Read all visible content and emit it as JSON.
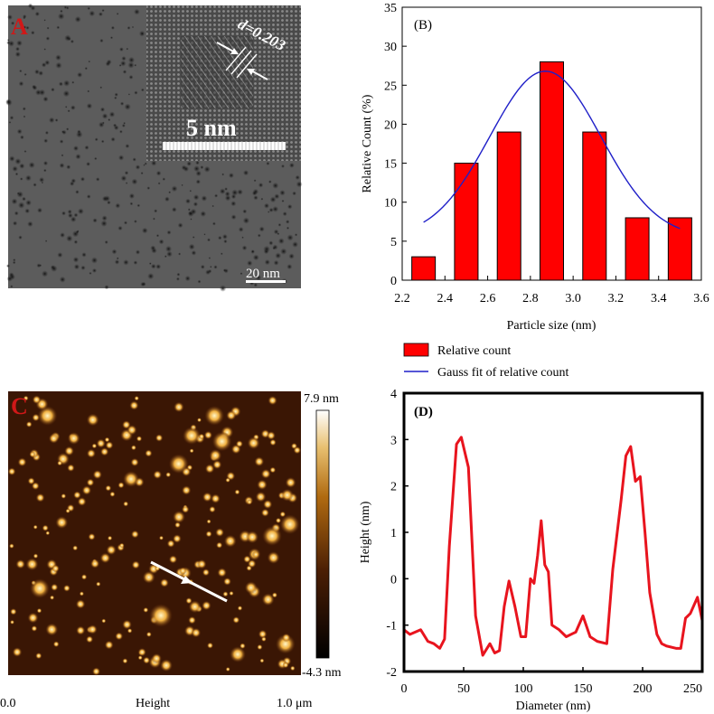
{
  "panelA": {
    "label": "A",
    "inset_d_label": "d=0.203",
    "inset_scale_label": "5 nm",
    "scale_label": "20 nm"
  },
  "panelC": {
    "label": "C",
    "colorbar_max": "7.9 nm",
    "colorbar_min": "-4.3 nm",
    "axis_left": "0.0",
    "axis_center": "Height",
    "axis_right": "1.0 μm"
  },
  "chart_data": [
    {
      "id": "B",
      "type": "bar",
      "title": "(B)",
      "xlabel": "Particle size (nm)",
      "ylabel": "Relative Count (%)",
      "xlim": [
        2.2,
        3.6
      ],
      "ylim": [
        0,
        35
      ],
      "xticks": [
        "2.2",
        "2.4",
        "2.6",
        "2.8",
        "3.0",
        "3.2",
        "3.4",
        "3.6"
      ],
      "yticks": [
        "0",
        "5",
        "10",
        "15",
        "20",
        "25",
        "30",
        "35"
      ],
      "bar_width": 0.11,
      "x": [
        2.3,
        2.5,
        2.7,
        2.9,
        3.1,
        3.3,
        3.5
      ],
      "values": [
        3,
        15,
        19,
        28,
        19,
        8,
        8
      ],
      "bar_color": "#ff0000",
      "gauss_fit": {
        "amplitude": 21.3,
        "mean": 2.87,
        "sigma": 0.26,
        "offset": 5.5,
        "x_range": [
          2.3,
          3.5
        ],
        "color": "#1f1fc8"
      },
      "legend": [
        {
          "label": "Relative count",
          "kind": "bar"
        },
        {
          "label": "Gauss fit of relative count",
          "kind": "line"
        }
      ],
      "legend_placement": "below"
    },
    {
      "id": "D",
      "type": "line",
      "title": "(D)",
      "xlabel": "Diameter (nm)",
      "ylabel": "Height (nm)",
      "xlim": [
        0,
        250
      ],
      "ylim": [
        -2,
        4
      ],
      "xticks": [
        "0",
        "50",
        "100",
        "150",
        "200",
        "250"
      ],
      "yticks": [
        "-2",
        "-1",
        "0",
        "1",
        "2",
        "3",
        "4"
      ],
      "color": "#e8141e",
      "x": [
        0,
        5,
        14,
        20,
        25,
        30,
        34,
        38,
        44,
        48,
        54,
        60,
        66,
        72,
        76,
        80,
        84,
        88,
        93,
        98,
        102,
        106,
        109,
        112,
        115,
        118,
        121,
        124,
        130,
        136,
        144,
        150,
        156,
        162,
        170,
        175,
        182,
        186,
        190,
        194,
        198,
        202,
        206,
        212,
        216,
        220,
        228,
        232,
        236,
        240,
        246,
        250
      ],
      "y": [
        -1.1,
        -1.2,
        -1.1,
        -1.35,
        -1.4,
        -1.5,
        -1.3,
        0.7,
        2.9,
        3.05,
        2.4,
        -0.8,
        -1.65,
        -1.4,
        -1.6,
        -1.55,
        -0.6,
        -0.05,
        -0.6,
        -1.25,
        -1.25,
        0.0,
        -0.1,
        0.5,
        1.25,
        0.3,
        0.15,
        -1.0,
        -1.1,
        -1.25,
        -1.15,
        -0.8,
        -1.25,
        -1.35,
        -1.4,
        0.2,
        1.7,
        2.65,
        2.85,
        2.1,
        2.2,
        1.0,
        -0.3,
        -1.2,
        -1.4,
        -1.45,
        -1.5,
        -1.5,
        -0.85,
        -0.75,
        -0.4,
        -0.9
      ]
    }
  ]
}
